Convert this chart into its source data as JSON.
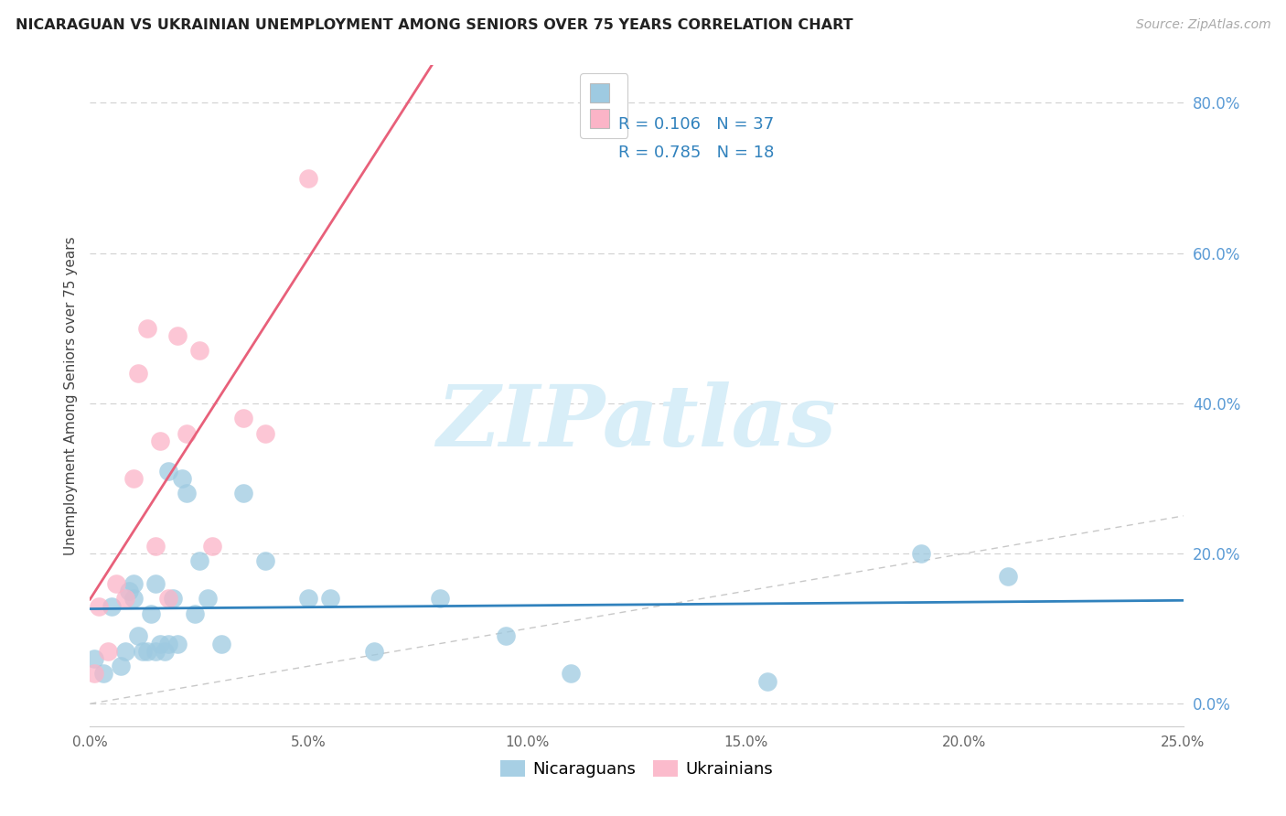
{
  "title": "NICARAGUAN VS UKRAINIAN UNEMPLOYMENT AMONG SENIORS OVER 75 YEARS CORRELATION CHART",
  "source": "Source: ZipAtlas.com",
  "ylabel": "Unemployment Among Seniors over 75 years",
  "xlim": [
    0.0,
    0.25
  ],
  "ylim": [
    -0.03,
    0.85
  ],
  "xtick_vals": [
    0.0,
    0.05,
    0.1,
    0.15,
    0.2,
    0.25
  ],
  "xtick_labels": [
    "0.0%",
    "5.0%",
    "10.0%",
    "15.0%",
    "20.0%",
    "25.0%"
  ],
  "ytick_right_vals": [
    0.0,
    0.2,
    0.4,
    0.6,
    0.8
  ],
  "ytick_right_labels": [
    "0.0%",
    "20.0%",
    "40.0%",
    "60.0%",
    "80.0%"
  ],
  "legend_nicaraguan": "Nicaraguans",
  "legend_ukrainian": "Ukrainians",
  "r_nicaraguan": "0.106",
  "n_nicaraguan": "37",
  "r_ukrainian": "0.785",
  "n_ukrainian": "18",
  "color_blue": "#9ecae1",
  "color_pink": "#fbb4c7",
  "color_line_blue": "#3182bd",
  "color_line_pink": "#e8607a",
  "color_r_text": "#3182bd",
  "color_n_text": "#e05050",
  "color_right_axis": "#5b9bd5",
  "color_title": "#222222",
  "color_source": "#aaaaaa",
  "watermark_text": "ZIPatlas",
  "watermark_color": "#d8eef8",
  "background_color": "#ffffff",
  "nicaraguan_x": [
    0.001,
    0.003,
    0.005,
    0.007,
    0.008,
    0.009,
    0.01,
    0.01,
    0.011,
    0.012,
    0.013,
    0.014,
    0.015,
    0.015,
    0.016,
    0.017,
    0.018,
    0.018,
    0.019,
    0.02,
    0.021,
    0.022,
    0.024,
    0.025,
    0.027,
    0.03,
    0.035,
    0.04,
    0.05,
    0.055,
    0.065,
    0.08,
    0.095,
    0.11,
    0.155,
    0.19,
    0.21
  ],
  "nicaraguan_y": [
    0.06,
    0.04,
    0.13,
    0.05,
    0.07,
    0.15,
    0.14,
    0.16,
    0.09,
    0.07,
    0.07,
    0.12,
    0.07,
    0.16,
    0.08,
    0.07,
    0.08,
    0.31,
    0.14,
    0.08,
    0.3,
    0.28,
    0.12,
    0.19,
    0.14,
    0.08,
    0.28,
    0.19,
    0.14,
    0.14,
    0.07,
    0.14,
    0.09,
    0.04,
    0.03,
    0.2,
    0.17
  ],
  "ukrainian_x": [
    0.001,
    0.002,
    0.004,
    0.006,
    0.008,
    0.01,
    0.011,
    0.013,
    0.015,
    0.016,
    0.018,
    0.02,
    0.022,
    0.025,
    0.028,
    0.035,
    0.04,
    0.05
  ],
  "ukrainian_y": [
    0.04,
    0.13,
    0.07,
    0.16,
    0.14,
    0.3,
    0.44,
    0.5,
    0.21,
    0.35,
    0.14,
    0.49,
    0.36,
    0.47,
    0.21,
    0.38,
    0.36,
    0.7
  ]
}
